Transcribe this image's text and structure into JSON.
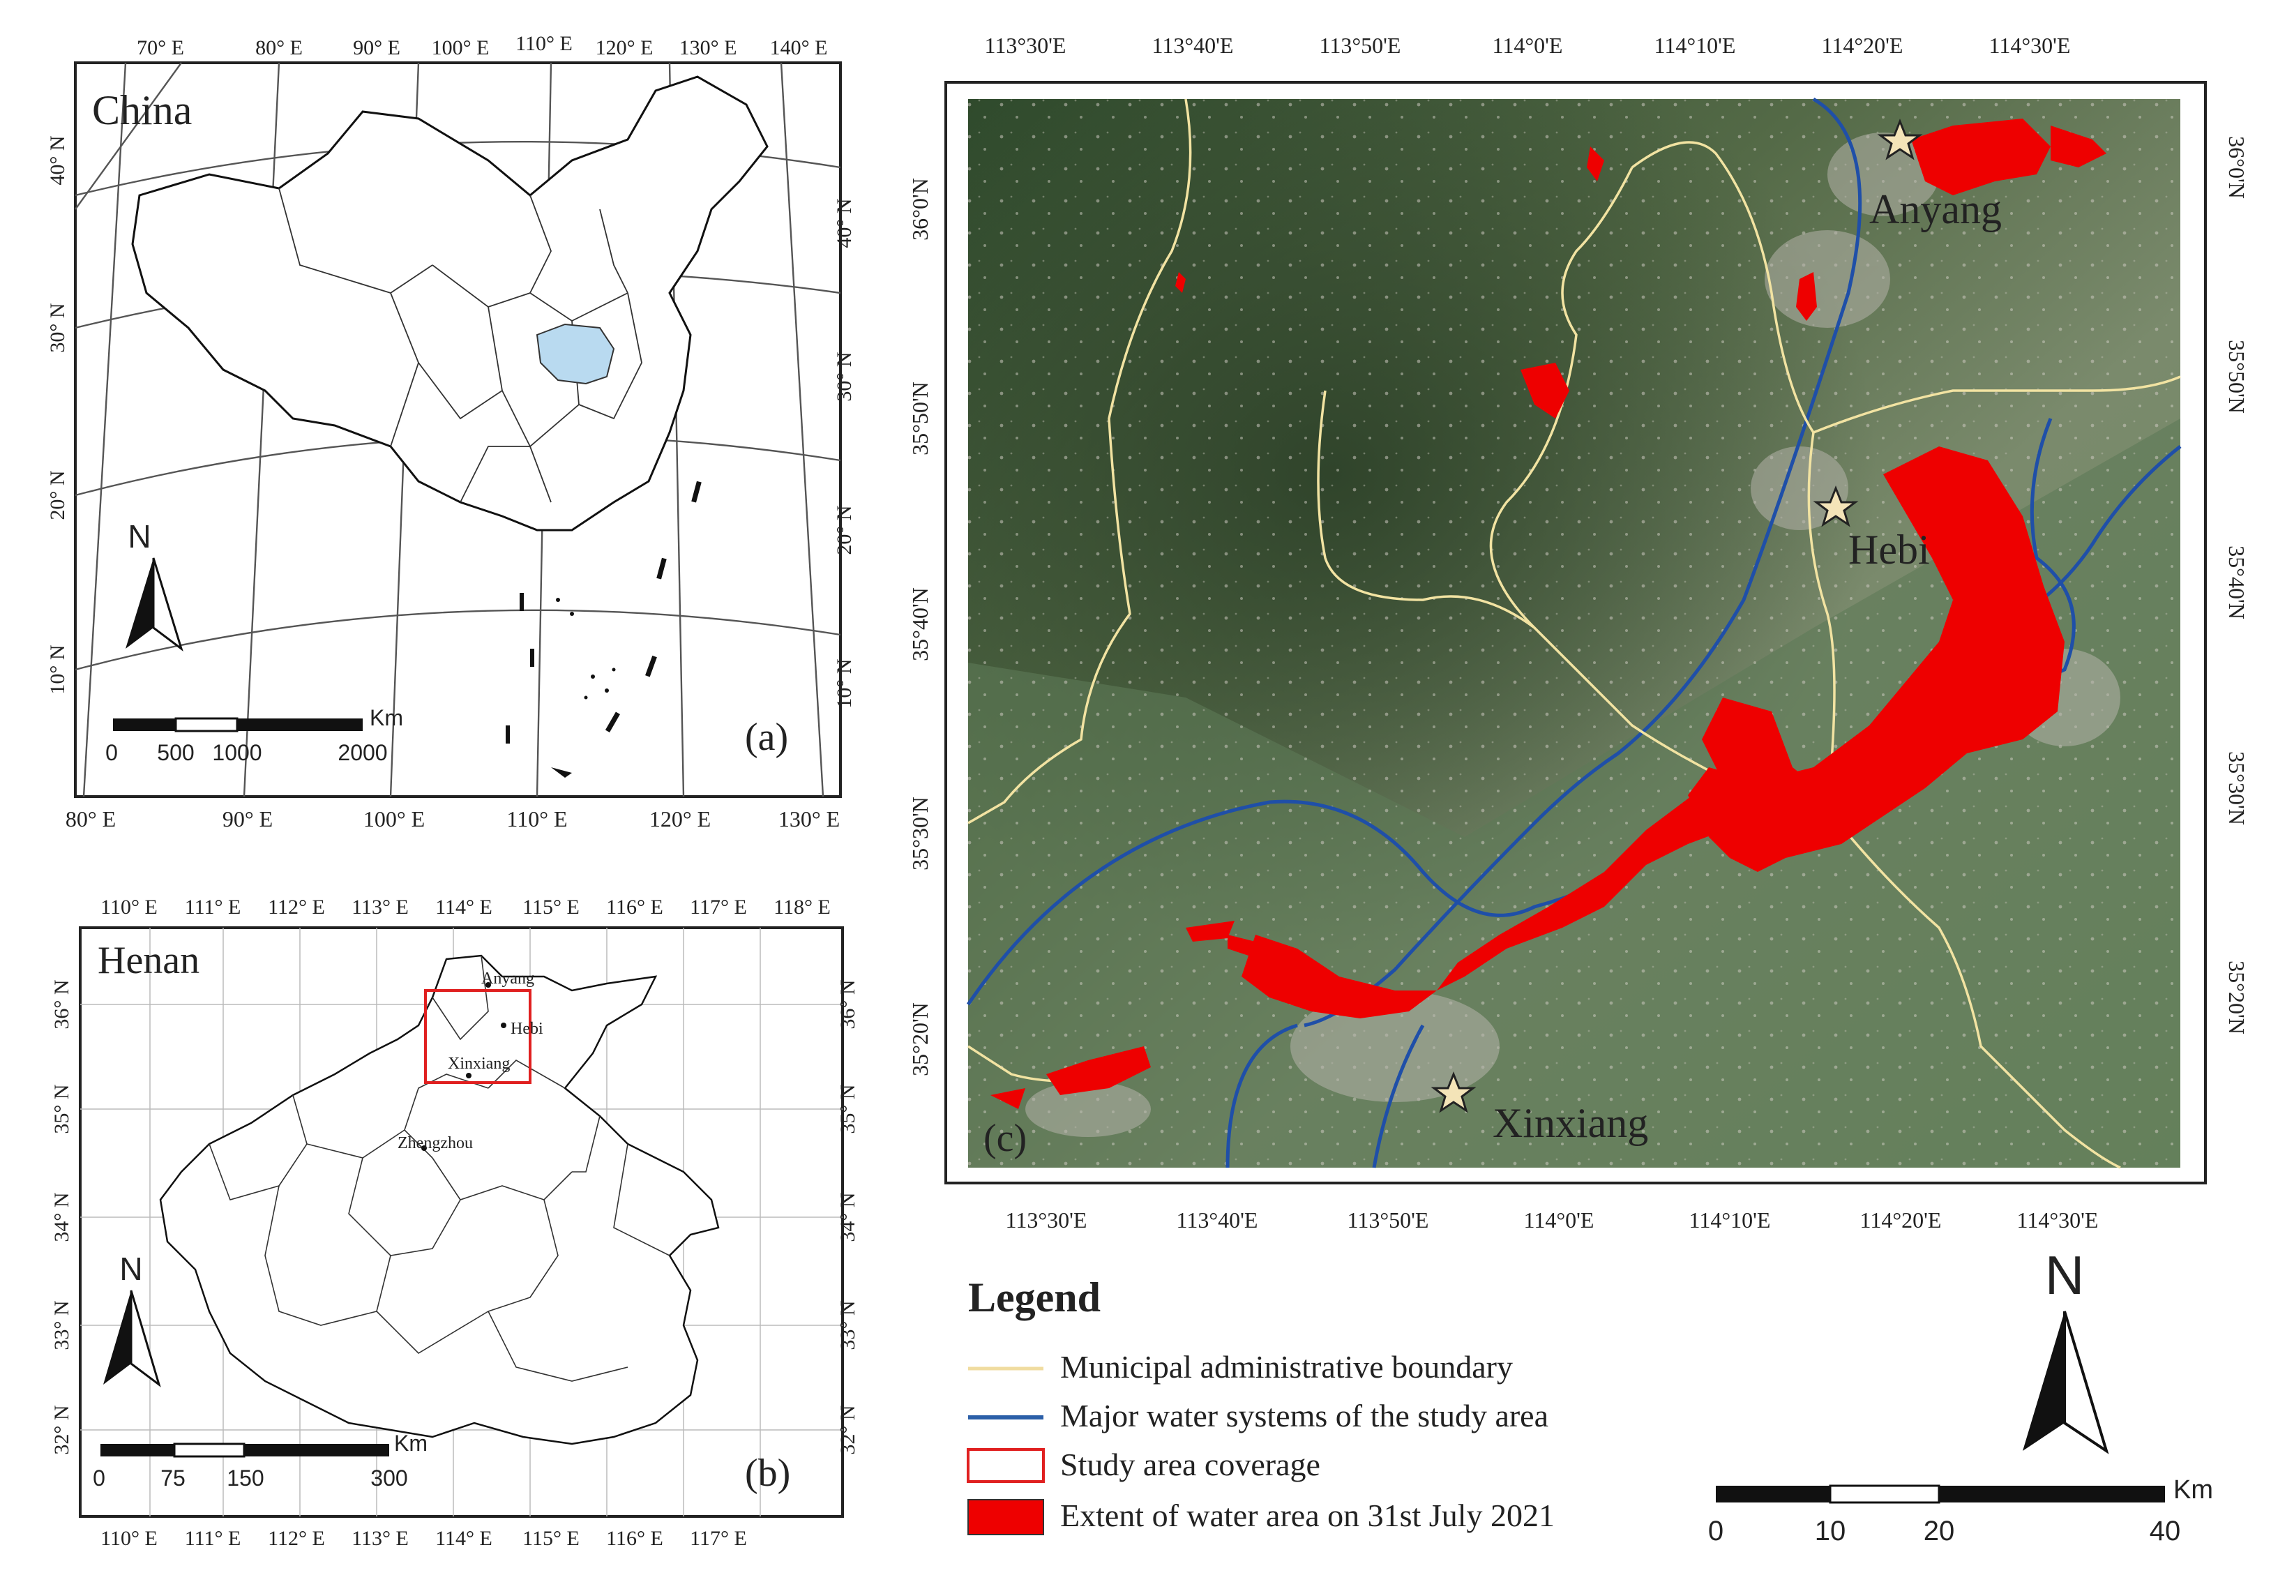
{
  "panel_a": {
    "title": "China",
    "tag": "(a)",
    "top_ticks": [
      "70° E",
      "80° E",
      "90° E",
      "100° E",
      "110° E",
      "120° E",
      "130° E",
      "140° E"
    ],
    "bottom_ticks": [
      "80° E",
      "90° E",
      "100° E",
      "110° E",
      "120° E",
      "130° E"
    ],
    "left_ticks": [
      "40° N",
      "30° N",
      "20° N",
      "10° N"
    ],
    "right_ticks": [
      "40° N",
      "30° N",
      "20° N",
      "10° N"
    ],
    "north": "N",
    "scale_unit": "Km",
    "scale_labels": [
      "0",
      "500",
      "1000",
      "2000"
    ],
    "highlight_color": "#b9daf0",
    "highlight_region": "Henan"
  },
  "panel_b": {
    "title": "Henan",
    "tag": "(b)",
    "top_ticks": [
      "110° E",
      "111° E",
      "112° E",
      "113° E",
      "114° E",
      "115° E",
      "116° E",
      "117° E",
      "118° E"
    ],
    "bottom_ticks": [
      "110° E",
      "111° E",
      "112° E",
      "113° E",
      "114° E",
      "115° E",
      "116° E",
      "117° E"
    ],
    "left_ticks": [
      "36° N",
      "35° N",
      "34° N",
      "33° N",
      "32° N"
    ],
    "right_ticks": [
      "36° N",
      "35° N",
      "34° N",
      "33° N",
      "32° N"
    ],
    "cities": [
      "Anyang",
      "Hebi",
      "Xinxiang",
      "Zhengzhou"
    ],
    "north": "N",
    "scale_unit": "Km",
    "scale_labels": [
      "0",
      "75",
      "150",
      "300"
    ],
    "study_box_color": "#e02020"
  },
  "panel_c": {
    "tag": "(c)",
    "top_ticks": [
      "113°30'E",
      "113°40'E",
      "113°50'E",
      "114°0'E",
      "114°10'E",
      "114°20'E",
      "114°30'E"
    ],
    "bottom_ticks": [
      "113°30'E",
      "113°40'E",
      "113°50'E",
      "114°0'E",
      "114°10'E",
      "114°20'E",
      "114°30'E"
    ],
    "left_ticks": [
      "36°0'N",
      "35°50'N",
      "35°40'N",
      "35°30'N",
      "35°20'N"
    ],
    "right_ticks": [
      "36°0'N",
      "35°50'N",
      "35°40'N",
      "35°30'N",
      "35°20'N"
    ],
    "cities": [
      "Anyang",
      "Hebi",
      "Xinxiang"
    ],
    "boundary_color": "#f2e3a2",
    "water_system_color": "#1f4fa8",
    "flood_color": "#ee0000"
  },
  "legend": {
    "title": "Legend",
    "items": [
      {
        "label": "Municipal administrative boundary",
        "symbol": "line",
        "color": "#f0dca0"
      },
      {
        "label": "Major water systems of the study area",
        "symbol": "line",
        "color": "#2b5fa8"
      },
      {
        "label": "Study area coverage",
        "symbol": "box",
        "color": "#e02020"
      },
      {
        "label": "Extent of water area on 31st July 2021",
        "symbol": "fill",
        "color": "#ee0000"
      }
    ]
  },
  "north_main": "N",
  "scale_main": {
    "unit": "Km",
    "labels": [
      "0",
      "10",
      "20",
      "40"
    ]
  }
}
